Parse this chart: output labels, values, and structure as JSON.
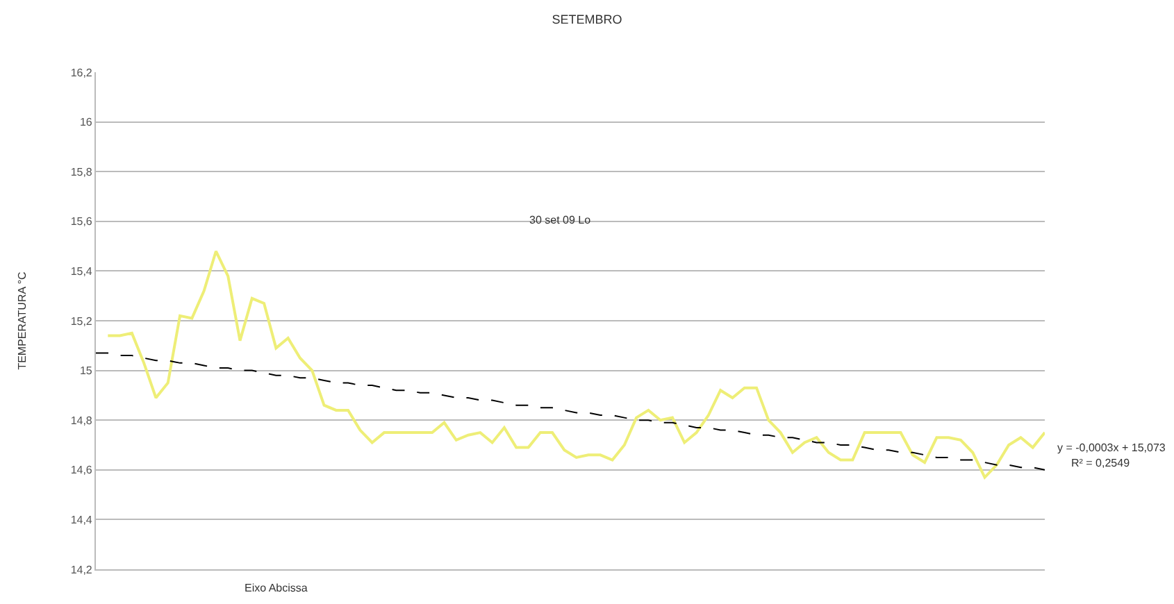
{
  "chart_data": {
    "type": "line",
    "title": "SETEMBRO",
    "ylabel": "TEMPERATURA °C",
    "categories": [
      null,
      null,
      null,
      null,
      null,
      null,
      null,
      null,
      null,
      null,
      null,
      null,
      null,
      null,
      null,
      null,
      null,
      null,
      null,
      null,
      null,
      null,
      null,
      null,
      null,
      null,
      null,
      null,
      null,
      null,
      null,
      null,
      null,
      null,
      null,
      null,
      null,
      null,
      null,
      null,
      null,
      null,
      null,
      null,
      null,
      null,
      null,
      null,
      null,
      null,
      null,
      null,
      null,
      null,
      null,
      null,
      null,
      null,
      null,
      null,
      null,
      null,
      null,
      null,
      null,
      null,
      null,
      null,
      null,
      null,
      null,
      null,
      null,
      null,
      null,
      null,
      null,
      null,
      null,
      null
    ],
    "ylim": [
      14.2,
      16.2
    ],
    "yticks": [
      {
        "value": 14.2,
        "label": "14,2"
      },
      {
        "value": 14.4,
        "label": "14,4"
      },
      {
        "value": 14.6,
        "label": "14,6"
      },
      {
        "value": 14.8,
        "label": "14,8"
      },
      {
        "value": 15,
        "label": "15"
      },
      {
        "value": 15.2,
        "label": "15,2"
      },
      {
        "value": 15.4,
        "label": "15,4"
      },
      {
        "value": 15.6,
        "label": "15,6"
      },
      {
        "value": 15.8,
        "label": "15,8"
      },
      {
        "value": 16,
        "label": "16"
      },
      {
        "value": 16.2,
        "label": "16,2"
      }
    ],
    "tick_labels": "y",
    "grid": "y",
    "marker": "none",
    "annotations": [
      "30 set 09 Lo",
      "y = -0,0003x + 15,073",
      "R² = 0,2549",
      "Eixo Abcissa"
    ],
    "series": [
      {
        "color": "#eeee77",
        "line_style": "solid",
        "values": [
          null,
          15.14,
          15.14,
          15.15,
          15.03,
          14.89,
          14.95,
          15.22,
          15.21,
          15.32,
          15.48,
          15.38,
          15.12,
          15.29,
          15.27,
          15.09,
          15.13,
          15.05,
          15.0,
          14.86,
          14.84,
          14.84,
          14.76,
          14.71,
          14.75,
          14.75,
          14.75,
          14.75,
          14.75,
          14.79,
          14.72,
          14.74,
          14.75,
          14.71,
          14.77,
          14.69,
          14.69,
          14.75,
          14.75,
          14.68,
          14.65,
          14.66,
          14.66,
          14.64,
          14.7,
          14.81,
          14.84,
          14.8,
          14.81,
          14.71,
          14.75,
          14.82,
          14.92,
          14.89,
          14.93,
          14.93,
          14.8,
          14.75,
          14.67,
          14.71,
          14.73,
          14.67,
          14.64,
          14.64,
          14.75,
          14.75,
          14.75,
          14.75,
          14.66,
          14.63,
          14.73,
          14.73,
          14.72,
          14.67,
          14.57,
          14.62,
          14.7,
          14.73,
          14.69,
          14.75
        ]
      },
      {
        "color": "#000000",
        "line_style": "dashed",
        "values": [
          15.07,
          15.07,
          15.06,
          15.06,
          15.05,
          15.04,
          15.04,
          15.03,
          15.03,
          15.02,
          15.01,
          15.01,
          15.0,
          15.0,
          14.99,
          14.98,
          14.98,
          14.97,
          14.97,
          14.96,
          14.95,
          14.95,
          14.94,
          14.94,
          14.93,
          14.92,
          14.92,
          14.91,
          14.91,
          14.9,
          14.89,
          14.89,
          14.88,
          14.88,
          14.87,
          14.86,
          14.86,
          14.85,
          14.85,
          14.84,
          14.83,
          14.83,
          14.82,
          14.82,
          14.81,
          14.8,
          14.8,
          14.79,
          14.79,
          14.78,
          14.77,
          14.77,
          14.76,
          14.76,
          14.75,
          14.74,
          14.74,
          14.73,
          14.73,
          14.72,
          14.71,
          14.71,
          14.7,
          14.7,
          14.69,
          14.68,
          14.68,
          14.67,
          14.67,
          14.66,
          14.65,
          14.65,
          14.64,
          14.64,
          14.63,
          14.62,
          14.62,
          14.61,
          14.61,
          14.6
        ]
      }
    ]
  }
}
